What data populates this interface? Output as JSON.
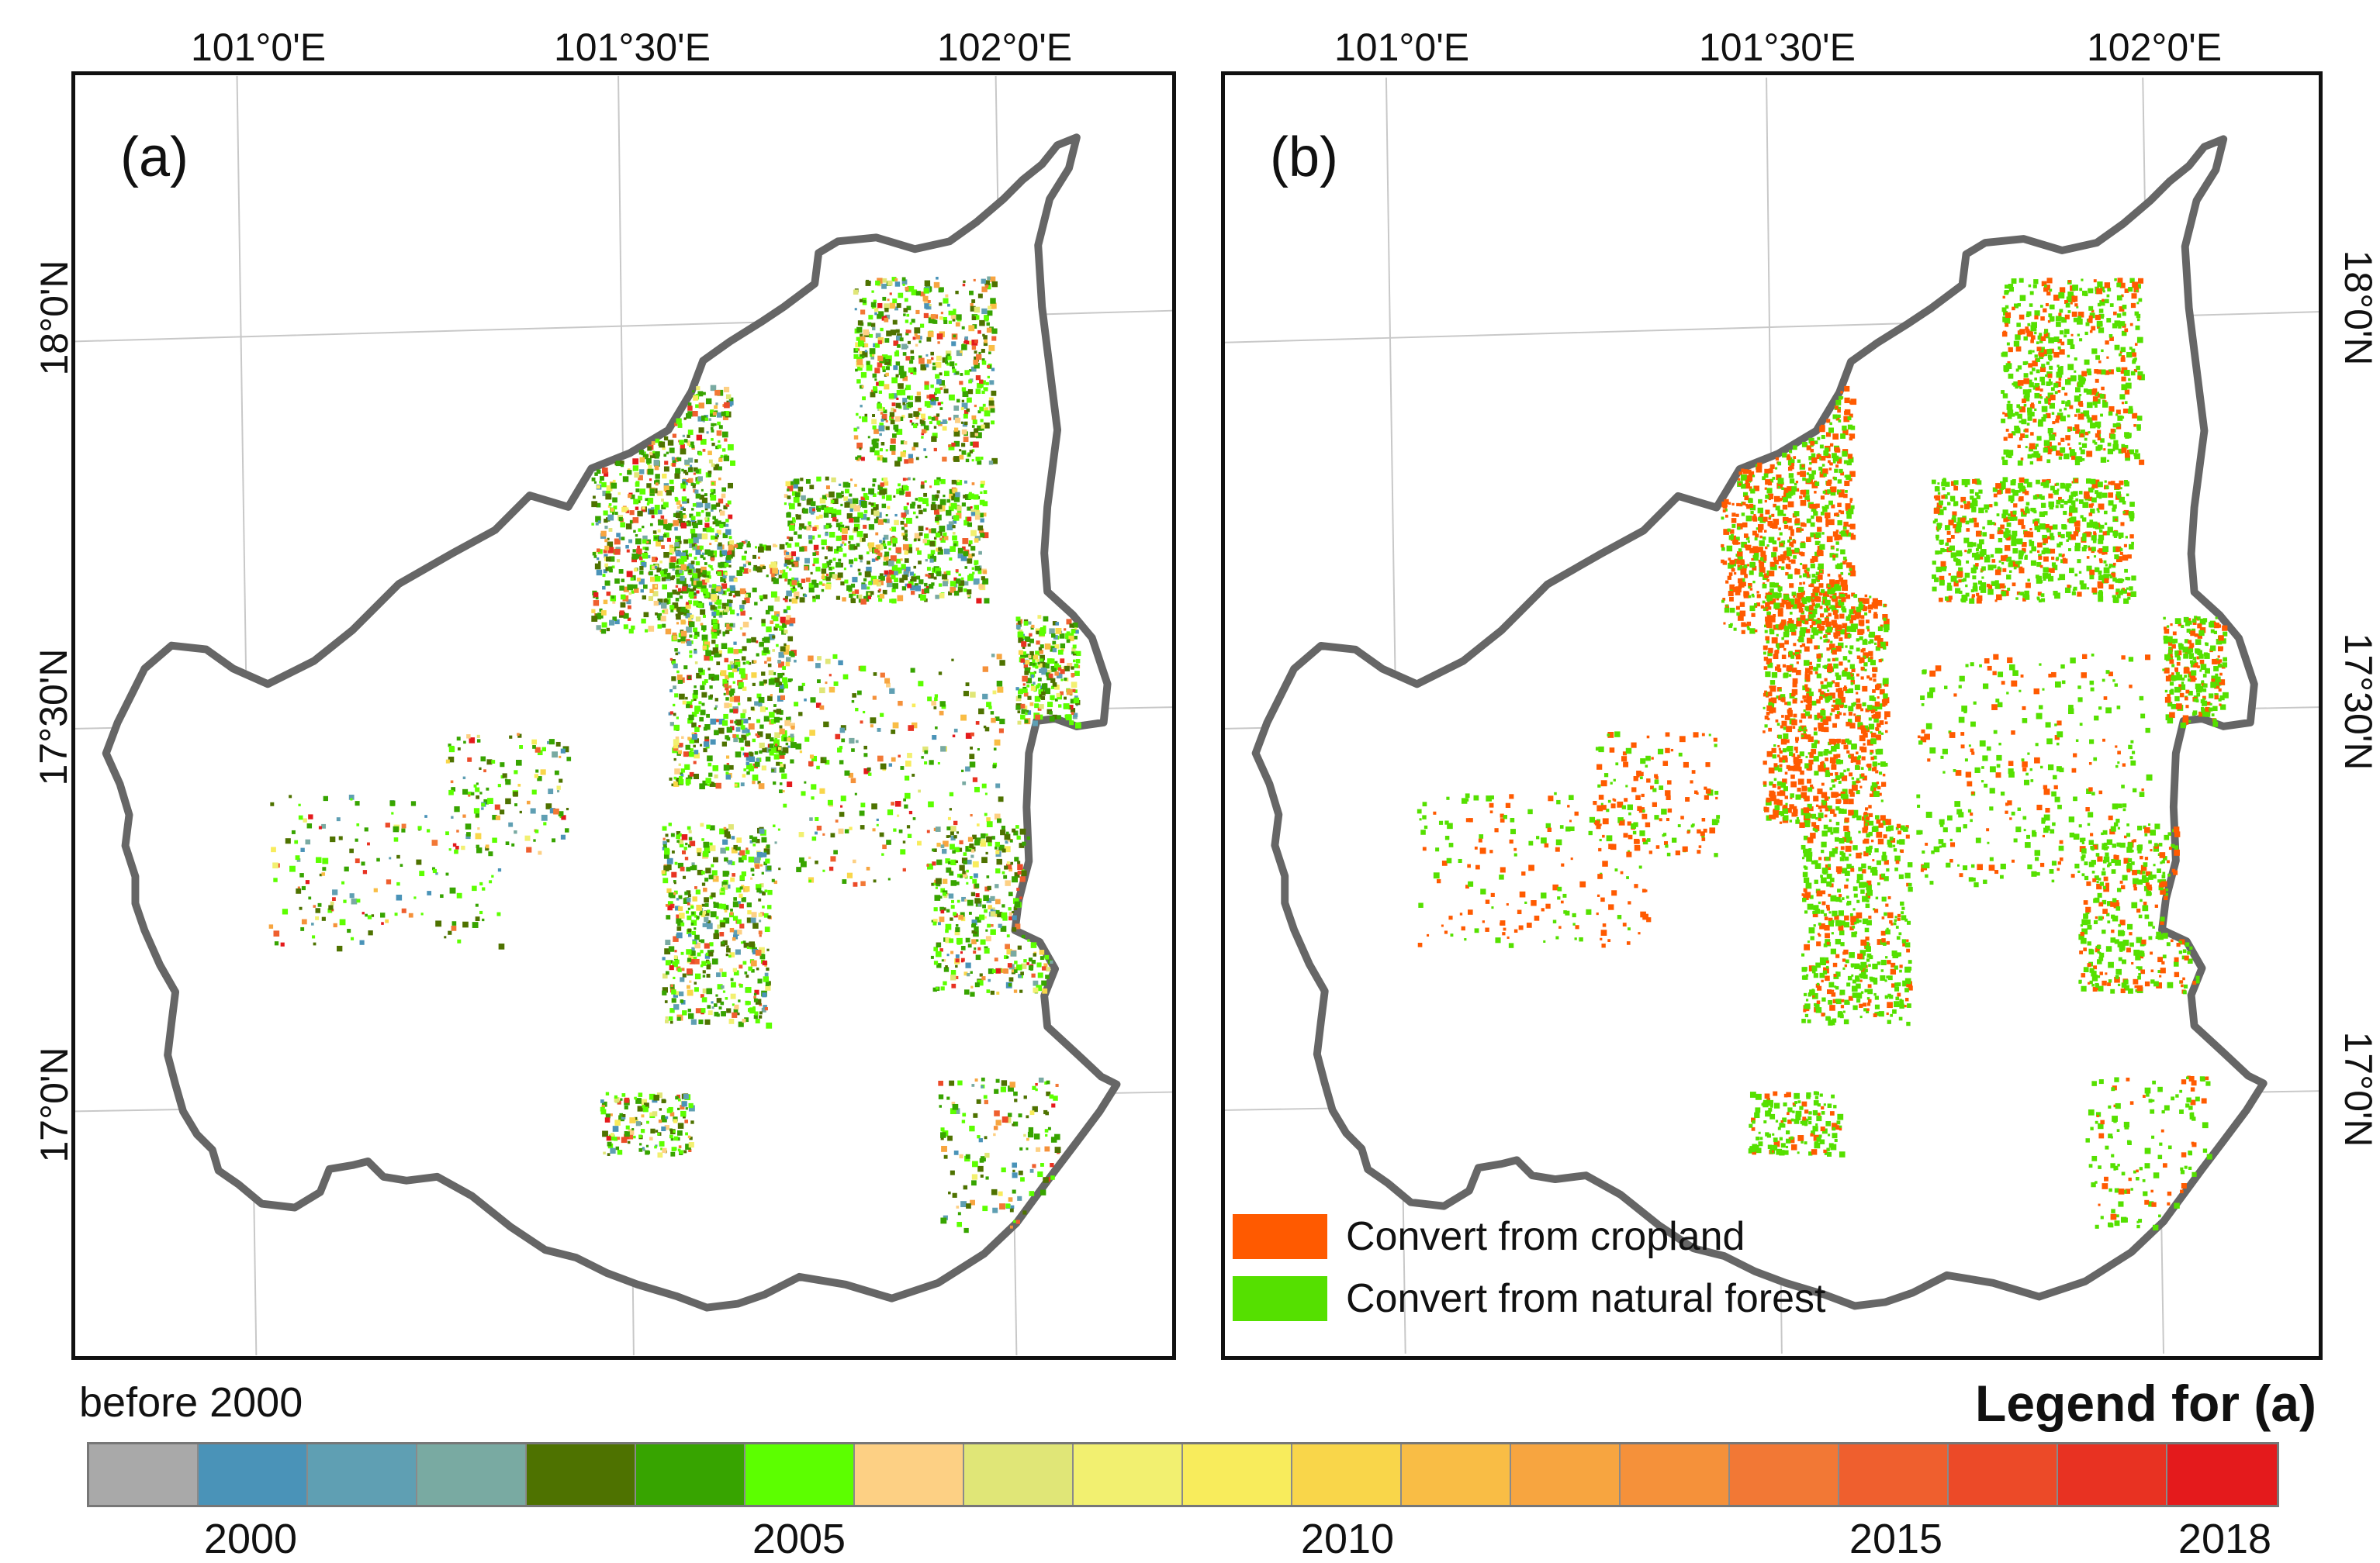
{
  "panels": {
    "a": {
      "label": "(a)",
      "longitudes": [
        "101°0'E",
        "101°30'E",
        "102°0'E"
      ],
      "latitudes": [
        "18°0'N",
        "17°30'N",
        "17°0'N"
      ]
    },
    "b": {
      "label": "(b)",
      "longitudes": [
        "101°0'E",
        "101°30'E",
        "102°0'E"
      ],
      "latitudes": [
        "18°0'N",
        "17°30'N",
        "17°0'N"
      ],
      "legend": [
        {
          "label": "Convert from cropland",
          "color": "#ff5a00"
        },
        {
          "label": "Convert from natural forest",
          "color": "#55e000"
        }
      ]
    }
  },
  "legend_a": {
    "title": "Legend for (a)",
    "before_label": "before 2000",
    "ticks": [
      "2000",
      "2005",
      "2010",
      "2015",
      "2018"
    ],
    "colors": [
      "#a9a9a9",
      "#4a93b8",
      "#5f9fb3",
      "#79aaa2",
      "#4e7200",
      "#37a400",
      "#5cff00",
      "#fdd084",
      "#e0e677",
      "#f2f070",
      "#f8ec5c",
      "#f9d64a",
      "#f9bd45",
      "#f7a540",
      "#f5913a",
      "#f27835",
      "#ef5f2e",
      "#ec4a28",
      "#e83222",
      "#e41a1c"
    ]
  },
  "colors": {
    "boundary": "#666666",
    "graticule": "#c8c8c8",
    "frame": "#111111"
  }
}
